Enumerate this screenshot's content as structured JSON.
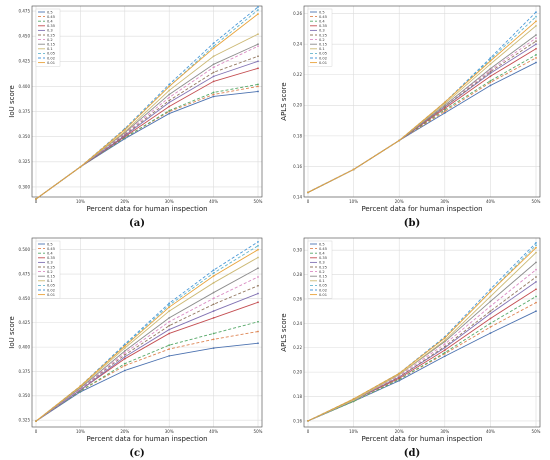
{
  "chart_data": [
    {
      "type": "line",
      "panel_label": "(a)",
      "xlabel": "Percent data for human inspection",
      "ylabel": "IoU score",
      "categories": [
        "0",
        "10%",
        "20%",
        "30%",
        "40%",
        "50%"
      ],
      "ylim": [
        0.29,
        0.48
      ],
      "yticks": [
        "0.300",
        "0.325",
        "0.350",
        "0.375",
        "0.400",
        "0.425",
        "0.450",
        "0.475"
      ],
      "ytick_values": [
        0.3,
        0.325,
        0.35,
        0.375,
        0.4,
        0.425,
        0.45,
        0.475
      ],
      "grid": true,
      "legend_loc": "top-left",
      "series": [
        {
          "name": "0.5",
          "values": [
            0.288,
            0.32,
            0.348,
            0.373,
            0.39,
            0.395
          ]
        },
        {
          "name": "0.45",
          "values": [
            0.288,
            0.32,
            0.349,
            0.375,
            0.392,
            0.4
          ]
        },
        {
          "name": "0.4",
          "values": [
            0.288,
            0.32,
            0.349,
            0.376,
            0.394,
            0.402
          ]
        },
        {
          "name": "0.35",
          "values": [
            0.288,
            0.32,
            0.35,
            0.38,
            0.405,
            0.418
          ]
        },
        {
          "name": "0.3",
          "values": [
            0.288,
            0.32,
            0.351,
            0.384,
            0.41,
            0.425
          ]
        },
        {
          "name": "0.25",
          "values": [
            0.288,
            0.32,
            0.352,
            0.386,
            0.414,
            0.43
          ]
        },
        {
          "name": "0.2",
          "values": [
            0.288,
            0.32,
            0.353,
            0.389,
            0.419,
            0.44
          ]
        },
        {
          "name": "0.15",
          "values": [
            0.288,
            0.32,
            0.354,
            0.392,
            0.422,
            0.442
          ]
        },
        {
          "name": "0.1",
          "values": [
            0.288,
            0.32,
            0.355,
            0.396,
            0.43,
            0.452
          ]
        },
        {
          "name": "0.05",
          "values": [
            0.288,
            0.32,
            0.357,
            0.4,
            0.44,
            0.476
          ]
        },
        {
          "name": "0.02",
          "values": [
            0.288,
            0.32,
            0.358,
            0.402,
            0.443,
            0.479
          ]
        },
        {
          "name": "0.01",
          "values": [
            0.288,
            0.32,
            0.357,
            0.4,
            0.438,
            0.472
          ]
        }
      ]
    },
    {
      "type": "line",
      "panel_label": "(b)",
      "xlabel": "Percent data for human inspection",
      "ylabel": "APLS score",
      "categories": [
        "0",
        "10%",
        "20%",
        "30%",
        "40%",
        "50%"
      ],
      "ylim": [
        0.14,
        0.265
      ],
      "yticks": [
        "0.14",
        "0.16",
        "0.18",
        "0.20",
        "0.22",
        "0.24",
        "0.26"
      ],
      "ytick_values": [
        0.14,
        0.16,
        0.18,
        0.2,
        0.22,
        0.24,
        0.26
      ],
      "grid": true,
      "legend_loc": "top-left",
      "series": [
        {
          "name": "0.5",
          "values": [
            0.143,
            0.158,
            0.177,
            0.195,
            0.213,
            0.228
          ]
        },
        {
          "name": "0.45",
          "values": [
            0.143,
            0.158,
            0.177,
            0.196,
            0.215,
            0.231
          ]
        },
        {
          "name": "0.4",
          "values": [
            0.143,
            0.158,
            0.177,
            0.197,
            0.216,
            0.233
          ]
        },
        {
          "name": "0.35",
          "values": [
            0.143,
            0.158,
            0.177,
            0.198,
            0.219,
            0.237
          ]
        },
        {
          "name": "0.3",
          "values": [
            0.143,
            0.158,
            0.177,
            0.199,
            0.221,
            0.24
          ]
        },
        {
          "name": "0.25",
          "values": [
            0.143,
            0.158,
            0.177,
            0.199,
            0.222,
            0.242
          ]
        },
        {
          "name": "0.2",
          "values": [
            0.143,
            0.158,
            0.177,
            0.2,
            0.223,
            0.244
          ]
        },
        {
          "name": "0.15",
          "values": [
            0.143,
            0.158,
            0.177,
            0.2,
            0.224,
            0.246
          ]
        },
        {
          "name": "0.1",
          "values": [
            0.143,
            0.158,
            0.177,
            0.201,
            0.227,
            0.252
          ]
        },
        {
          "name": "0.05",
          "values": [
            0.143,
            0.158,
            0.177,
            0.202,
            0.23,
            0.258
          ]
        },
        {
          "name": "0.02",
          "values": [
            0.143,
            0.158,
            0.177,
            0.202,
            0.231,
            0.261
          ]
        },
        {
          "name": "0.01",
          "values": [
            0.143,
            0.158,
            0.177,
            0.202,
            0.229,
            0.255
          ]
        }
      ]
    },
    {
      "type": "line",
      "panel_label": "(c)",
      "xlabel": "Percent data for human inspection",
      "ylabel": "IoU score",
      "categories": [
        "0",
        "10%",
        "20%",
        "30%",
        "40%",
        "50%"
      ],
      "ylim": [
        0.318,
        0.512
      ],
      "yticks": [
        "0.325",
        "0.350",
        "0.375",
        "0.400",
        "0.425",
        "0.450",
        "0.475",
        "0.500"
      ],
      "ytick_values": [
        0.325,
        0.35,
        0.375,
        0.4,
        0.425,
        0.45,
        0.475,
        0.5
      ],
      "grid": true,
      "legend_loc": "top-left",
      "series": [
        {
          "name": "0.5",
          "values": [
            0.324,
            0.354,
            0.376,
            0.391,
            0.399,
            0.404
          ]
        },
        {
          "name": "0.45",
          "values": [
            0.324,
            0.355,
            0.381,
            0.398,
            0.408,
            0.416
          ]
        },
        {
          "name": "0.4",
          "values": [
            0.324,
            0.355,
            0.383,
            0.402,
            0.414,
            0.426
          ]
        },
        {
          "name": "0.35",
          "values": [
            0.324,
            0.356,
            0.388,
            0.414,
            0.43,
            0.446
          ]
        },
        {
          "name": "0.3",
          "values": [
            0.324,
            0.356,
            0.39,
            0.418,
            0.437,
            0.455
          ]
        },
        {
          "name": "0.25",
          "values": [
            0.324,
            0.357,
            0.392,
            0.422,
            0.444,
            0.463
          ]
        },
        {
          "name": "0.2",
          "values": [
            0.324,
            0.357,
            0.394,
            0.426,
            0.45,
            0.472
          ]
        },
        {
          "name": "0.15",
          "values": [
            0.324,
            0.358,
            0.396,
            0.43,
            0.456,
            0.481
          ]
        },
        {
          "name": "0.1",
          "values": [
            0.324,
            0.359,
            0.399,
            0.437,
            0.466,
            0.492
          ]
        },
        {
          "name": "0.05",
          "values": [
            0.324,
            0.36,
            0.402,
            0.443,
            0.476,
            0.504
          ]
        },
        {
          "name": "0.02",
          "values": [
            0.324,
            0.36,
            0.403,
            0.445,
            0.479,
            0.508
          ]
        },
        {
          "name": "0.01",
          "values": [
            0.324,
            0.36,
            0.401,
            0.441,
            0.473,
            0.5
          ]
        }
      ]
    },
    {
      "type": "line",
      "panel_label": "(d)",
      "xlabel": "Percent data for human inspection",
      "ylabel": "APLS score",
      "categories": [
        "0",
        "10%",
        "20%",
        "30%",
        "40%",
        "50%"
      ],
      "ylim": [
        0.155,
        0.31
      ],
      "yticks": [
        "0.16",
        "0.18",
        "0.20",
        "0.22",
        "0.24",
        "0.26",
        "0.28",
        "0.30"
      ],
      "ytick_values": [
        0.16,
        0.18,
        0.2,
        0.22,
        0.24,
        0.26,
        0.28,
        0.3
      ],
      "grid": true,
      "legend_loc": "top-left",
      "series": [
        {
          "name": "0.5",
          "values": [
            0.16,
            0.176,
            0.193,
            0.213,
            0.232,
            0.25
          ]
        },
        {
          "name": "0.45",
          "values": [
            0.16,
            0.176,
            0.194,
            0.215,
            0.237,
            0.257
          ]
        },
        {
          "name": "0.4",
          "values": [
            0.16,
            0.176,
            0.194,
            0.216,
            0.24,
            0.262
          ]
        },
        {
          "name": "0.35",
          "values": [
            0.16,
            0.177,
            0.195,
            0.218,
            0.244,
            0.268
          ]
        },
        {
          "name": "0.3",
          "values": [
            0.16,
            0.177,
            0.196,
            0.22,
            0.248,
            0.274
          ]
        },
        {
          "name": "0.25",
          "values": [
            0.16,
            0.177,
            0.196,
            0.221,
            0.25,
            0.278
          ]
        },
        {
          "name": "0.2",
          "values": [
            0.16,
            0.177,
            0.197,
            0.223,
            0.254,
            0.284
          ]
        },
        {
          "name": "0.15",
          "values": [
            0.16,
            0.177,
            0.198,
            0.225,
            0.258,
            0.29
          ]
        },
        {
          "name": "0.1",
          "values": [
            0.16,
            0.177,
            0.198,
            0.226,
            0.262,
            0.298
          ]
        },
        {
          "name": "0.05",
          "values": [
            0.16,
            0.178,
            0.199,
            0.228,
            0.266,
            0.304
          ]
        },
        {
          "name": "0.02",
          "values": [
            0.16,
            0.178,
            0.199,
            0.229,
            0.268,
            0.306
          ]
        },
        {
          "name": "0.01",
          "values": [
            0.16,
            0.178,
            0.199,
            0.228,
            0.266,
            0.302
          ]
        }
      ]
    }
  ],
  "series_style": [
    {
      "color": "#4c72b0",
      "dash": ""
    },
    {
      "color": "#dd8452",
      "dash": "3,2"
    },
    {
      "color": "#55a868",
      "dash": "3,2"
    },
    {
      "color": "#c44e52",
      "dash": ""
    },
    {
      "color": "#8172b3",
      "dash": ""
    },
    {
      "color": "#937860",
      "dash": "3,2"
    },
    {
      "color": "#da8bc3",
      "dash": "3,2"
    },
    {
      "color": "#8c8c8c",
      "dash": ""
    },
    {
      "color": "#ccb974",
      "dash": ""
    },
    {
      "color": "#64b5cd",
      "dash": "3,2"
    },
    {
      "color": "#4c9ad8",
      "dash": "3,2"
    },
    {
      "color": "#e8a33a",
      "dash": ""
    }
  ]
}
